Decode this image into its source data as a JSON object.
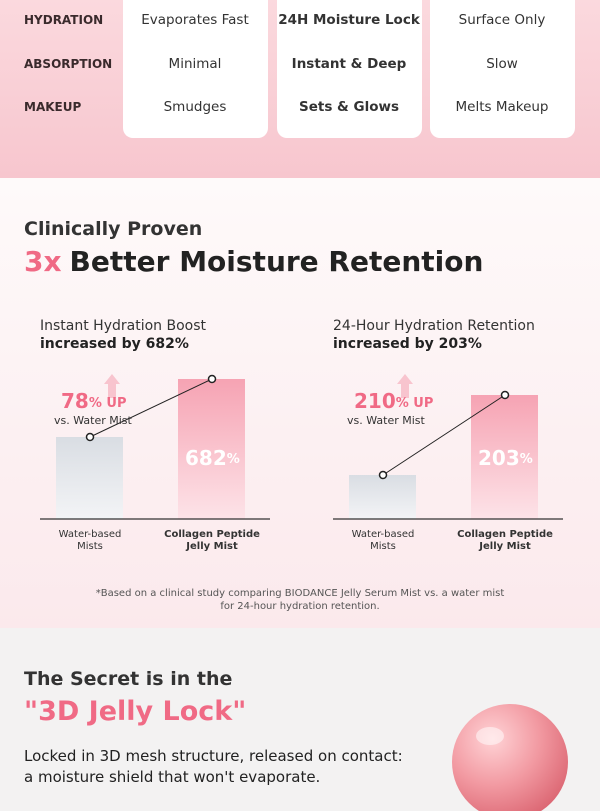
{
  "comparison": {
    "rows": [
      {
        "label": "HYDRATION",
        "cells": [
          "Evaporates Fast",
          "24H Moisture Lock",
          "Surface Only"
        ]
      },
      {
        "label": "ABSORPTION",
        "cells": [
          "Minimal",
          "Instant & Deep",
          "Slow"
        ]
      },
      {
        "label": "MAKEUP",
        "cells": [
          "Smudges",
          "Sets & Glows",
          "Melts Makeup"
        ]
      }
    ]
  },
  "retention": {
    "kicker": "Clinically Proven",
    "highlight": "3x",
    "title": "Better Moisture Retention",
    "charts": [
      {
        "title": "Instant Hydration Boost",
        "subtitle": "increased by 682%",
        "gain": "78",
        "gain_unit": "% UP",
        "gain_note": "vs. Water Mist",
        "result": "682",
        "result_unit": "%",
        "labels": [
          [
            "Water-based",
            "Mists"
          ],
          [
            "Collagen Peptide",
            "Jelly Mist"
          ]
        ]
      },
      {
        "title": "24-Hour Hydration Retention",
        "subtitle": "increased by 203%",
        "gain": "210",
        "gain_unit": "% UP",
        "gain_note": "vs. Water Mist",
        "result": "203",
        "result_unit": "%",
        "labels": [
          [
            "Water-based",
            "Mists"
          ],
          [
            "Collagen Peptide",
            "Jelly Mist"
          ]
        ]
      }
    ],
    "footnote": [
      "*Based on a clinical study comparing BIODANCE Jelly Serum Mist vs. a water mist",
      "for 24-hour hydration retention."
    ]
  },
  "secret": {
    "kicker": "The Secret is in the",
    "title": "\"3D Jelly Lock\"",
    "body": [
      "Locked in 3D mesh structure, released on contact:",
      "a moisture shield that won't evaporate."
    ]
  }
}
